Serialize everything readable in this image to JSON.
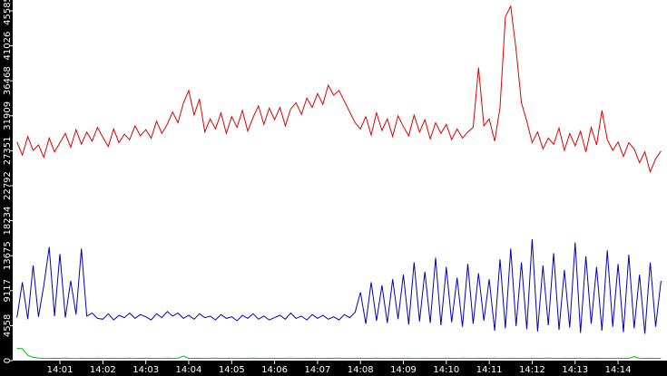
{
  "chart_data": {
    "type": "line",
    "x": [
      0,
      0.125,
      0.25,
      0.375,
      0.5,
      0.625,
      0.75,
      0.875,
      1,
      1.125,
      1.25,
      1.375,
      1.5,
      1.625,
      1.75,
      1.875,
      2,
      2.125,
      2.25,
      2.375,
      2.5,
      2.625,
      2.75,
      2.875,
      3,
      3.125,
      3.25,
      3.375,
      3.5,
      3.625,
      3.75,
      3.875,
      4,
      4.125,
      4.25,
      4.375,
      4.5,
      4.625,
      4.75,
      4.875,
      5,
      5.125,
      5.25,
      5.375,
      5.5,
      5.625,
      5.75,
      5.875,
      6,
      6.125,
      6.25,
      6.375,
      6.5,
      6.625,
      6.75,
      6.875,
      7,
      7.125,
      7.25,
      7.375,
      7.5,
      7.625,
      7.75,
      7.875,
      8,
      8.125,
      8.25,
      8.375,
      8.5,
      8.625,
      8.75,
      8.875,
      9,
      9.125,
      9.25,
      9.375,
      9.5,
      9.625,
      9.75,
      9.875,
      10,
      10.125,
      10.25,
      10.375,
      10.5,
      10.625,
      10.75,
      10.875,
      11,
      11.125,
      11.25,
      11.375,
      11.5,
      11.625,
      11.75,
      11.875,
      12,
      12.125,
      12.25,
      12.375,
      12.5,
      12.625,
      12.75,
      12.875,
      13,
      13.125,
      13.25,
      13.375,
      13.5,
      13.625,
      13.75,
      13.875,
      14,
      14.125,
      14.25,
      14.375,
      14.5,
      14.625,
      14.75,
      14.875,
      15
    ],
    "series": [
      {
        "color": "#e00000",
        "values": [
          28500,
          26800,
          29200,
          27400,
          28100,
          26500,
          29000,
          27200,
          28400,
          29600,
          27800,
          30100,
          28200,
          29800,
          28600,
          30400,
          29100,
          27900,
          30200,
          28400,
          29500,
          28800,
          30600,
          29300,
          30100,
          29000,
          31200,
          29600,
          30800,
          32400,
          31000,
          33600,
          35200,
          32000,
          34100,
          29800,
          31500,
          30200,
          32300,
          29600,
          31800,
          30400,
          32600,
          29900,
          31700,
          33200,
          30800,
          32900,
          31400,
          33000,
          30600,
          32800,
          33600,
          32100,
          34200,
          33000,
          34800,
          33400,
          35900,
          34600,
          35200,
          33800,
          32400,
          31000,
          30200,
          31800,
          29400,
          32300,
          30000,
          31500,
          29200,
          31900,
          30500,
          29300,
          32000,
          29800,
          31400,
          28900,
          31000,
          29600,
          30800,
          28800,
          30200,
          29000,
          29800,
          30400,
          38200,
          30600,
          31500,
          28600,
          33000,
          44800,
          46200,
          40500,
          33600,
          31200,
          28400,
          29800,
          27600,
          29000,
          28200,
          30300,
          27400,
          29600,
          28000,
          29900,
          27200,
          30400,
          28100,
          32600,
          28800,
          27400,
          28500,
          26600,
          28400,
          27600,
          25800,
          27200,
          24600,
          26300,
          27300
        ]
      },
      {
        "color": "#0000c0",
        "values": [
          5600,
          10200,
          5400,
          12400,
          5700,
          9800,
          14800,
          5800,
          13900,
          5600,
          10400,
          6000,
          14600,
          5800,
          6200,
          5500,
          5400,
          6100,
          5300,
          5900,
          5600,
          6200,
          5500,
          6000,
          5700,
          5300,
          6100,
          5600,
          6400,
          5800,
          6200,
          5500,
          5900,
          5400,
          6100,
          5600,
          5800,
          5300,
          6000,
          5500,
          5700,
          5200,
          5900,
          5500,
          6100,
          5400,
          5800,
          5300,
          5600,
          5900,
          5400,
          6200,
          5500,
          5800,
          5300,
          6000,
          5500,
          5900,
          5400,
          5700,
          5300,
          6000,
          5600,
          6300,
          8900,
          4800,
          10200,
          5200,
          9800,
          4900,
          10600,
          5400,
          11200,
          4700,
          12800,
          5100,
          11600,
          4900,
          13400,
          4600,
          12200,
          5000,
          10800,
          4400,
          12600,
          4800,
          11400,
          5200,
          10600,
          3900,
          13200,
          4200,
          14600,
          4500,
          12800,
          4100,
          15800,
          3800,
          12400,
          4600,
          14000,
          4000,
          11800,
          4300,
          15400,
          3600,
          13600,
          4800,
          12200,
          3900,
          14400,
          4400,
          12600,
          3700,
          13800,
          4200,
          11200,
          3500,
          12800,
          4400,
          10400
        ]
      },
      {
        "color": "#00c000",
        "values": [
          1600,
          1550,
          700,
          420,
          330,
          300,
          280,
          310,
          290,
          320,
          300,
          270,
          310,
          290,
          300,
          330,
          280,
          300,
          310,
          290,
          300,
          320,
          280,
          300,
          310,
          290,
          300,
          280,
          320,
          300,
          310,
          600,
          300,
          290,
          310,
          280,
          300,
          320,
          290,
          300,
          310,
          280,
          300,
          290,
          320,
          300,
          280,
          310,
          300,
          290,
          300,
          320,
          280,
          300,
          310,
          290,
          300,
          280,
          310,
          300,
          320,
          290,
          300,
          280,
          310,
          300,
          290,
          320,
          300,
          280,
          310,
          290,
          300,
          320,
          280,
          300,
          310,
          290,
          300,
          280,
          310,
          300,
          290,
          320,
          300,
          280,
          310,
          290,
          300,
          320,
          280,
          300,
          310,
          290,
          300,
          280,
          310,
          300,
          290,
          320,
          300,
          280,
          310,
          290,
          300,
          320,
          280,
          300,
          310,
          290,
          300,
          280,
          310,
          300,
          290,
          520,
          300,
          280,
          310,
          290,
          300
        ]
      }
    ],
    "xlim": [
      -0.1,
      15.14
    ],
    "xticks": [
      {
        "value": 1,
        "label": "14:01"
      },
      {
        "value": 2,
        "label": "14:02"
      },
      {
        "value": 3,
        "label": "14:03"
      },
      {
        "value": 4,
        "label": "14:04"
      },
      {
        "value": 5,
        "label": "14:05"
      },
      {
        "value": 6,
        "label": "14:06"
      },
      {
        "value": 7,
        "label": "14:07"
      },
      {
        "value": 8,
        "label": "14:08"
      },
      {
        "value": 9,
        "label": "14:09"
      },
      {
        "value": 10,
        "label": "14:10"
      },
      {
        "value": 11,
        "label": "14:11"
      },
      {
        "value": 12,
        "label": "14:12"
      },
      {
        "value": 13,
        "label": "14:13"
      },
      {
        "value": 14,
        "label": "14:14"
      }
    ],
    "ylim": [
      0,
      47000
    ],
    "yticks": [
      0,
      4558,
      9117,
      13675,
      18234,
      22792,
      27351,
      31909,
      36468,
      41026,
      45585
    ]
  }
}
